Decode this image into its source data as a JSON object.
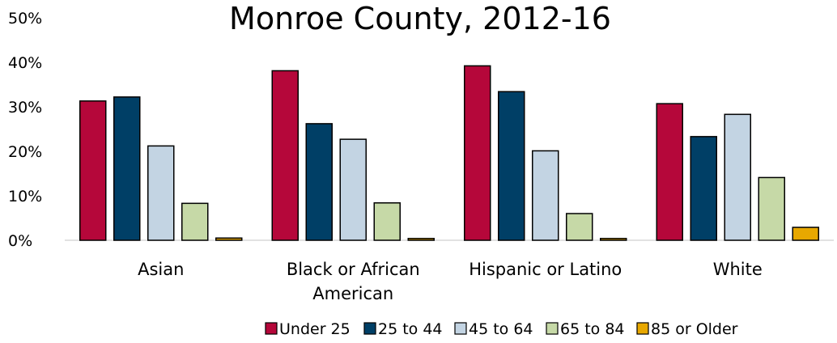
{
  "chart_data": {
    "type": "bar",
    "title": "Monroe County, 2012-16",
    "xlabel": "",
    "ylabel": "",
    "ylim": [
      0,
      50
    ],
    "yticks": [
      "0%",
      "10%",
      "20%",
      "30%",
      "40%",
      "50%"
    ],
    "categories": [
      [
        "Asian"
      ],
      [
        "Black or African",
        "American"
      ],
      [
        "Hispanic or Latino"
      ],
      [
        "White"
      ]
    ],
    "series": [
      {
        "name": "Under 25",
        "color": "#B5073A",
        "values": [
          31.3,
          38.1,
          39.2,
          30.7
        ]
      },
      {
        "name": "25 to 44",
        "color": "#003F66",
        "values": [
          32.2,
          26.2,
          33.4,
          23.3
        ]
      },
      {
        "name": "45 to 64",
        "color": "#C3D4E3",
        "values": [
          21.2,
          22.7,
          20.1,
          28.3
        ]
      },
      {
        "name": "65 to 84",
        "color": "#C6D9A7",
        "values": [
          8.3,
          8.4,
          6.0,
          14.1
        ]
      },
      {
        "name": "85 or Older",
        "color": "#E8A800",
        "values": [
          0.5,
          0.4,
          0.4,
          2.9
        ]
      }
    ],
    "grid": false,
    "legend_position": "bottom-right"
  }
}
